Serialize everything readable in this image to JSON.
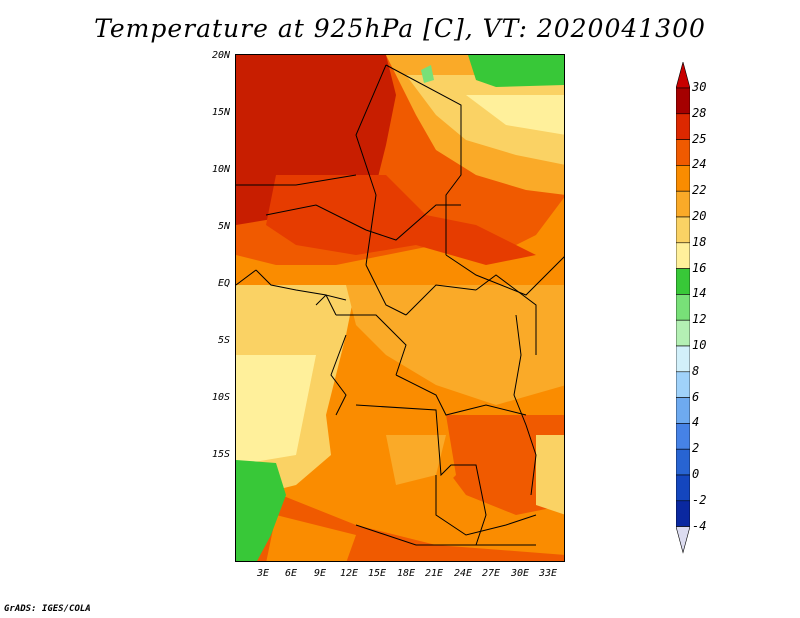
{
  "title": "Temperature at 925hPa [C], VT: 2020041300",
  "credit": "GrADS: IGES/COLA",
  "lat_labels": [
    "20N",
    "15N",
    "10N",
    "5N",
    "EQ",
    "5S",
    "10S",
    "15S"
  ],
  "lon_labels": [
    "3E",
    "6E",
    "9E",
    "12E",
    "15E",
    "18E",
    "21E",
    "24E",
    "27E",
    "30E",
    "33E"
  ],
  "colorbar": {
    "labels": [
      "30",
      "28",
      "25",
      "24",
      "22",
      "20",
      "18",
      "16",
      "14",
      "12",
      "10",
      "8",
      "6",
      "4",
      "2",
      "0",
      "-2",
      "-4"
    ],
    "colors": [
      "#a50000",
      "#dc2800",
      "#f05a00",
      "#fa8c00",
      "#faaa28",
      "#fad264",
      "#fff09b",
      "#38c838",
      "#78e078",
      "#b4f0b4",
      "#d2f0fa",
      "#a0d2fa",
      "#6eaaf0",
      "#4682e6",
      "#2864d2",
      "#1446be",
      "#0a28a0",
      "#000a78"
    ],
    "end_low": "#dcdcf0",
    "end_high": "#c80000"
  },
  "map_colors": {
    "dark_red": "#c81e00",
    "red": "#e63c00",
    "orange_red": "#f05a00",
    "orange": "#fa8c00",
    "light_orange": "#faaa28",
    "yellow": "#fad264",
    "pale_yellow": "#fff09b",
    "green": "#38c838",
    "light_green": "#78e078"
  }
}
